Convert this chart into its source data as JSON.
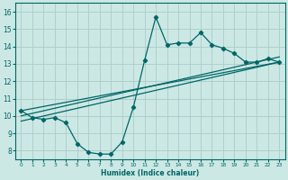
{
  "xlabel": "Humidex (Indice chaleur)",
  "bg_color": "#cce8e4",
  "grid_color": "#aacccc",
  "line_color": "#006666",
  "xlim": [
    -0.5,
    23.5
  ],
  "ylim": [
    7.5,
    16.5
  ],
  "xticks": [
    0,
    1,
    2,
    3,
    4,
    5,
    6,
    7,
    8,
    9,
    10,
    11,
    12,
    13,
    14,
    15,
    16,
    17,
    18,
    19,
    20,
    21,
    22,
    23
  ],
  "yticks": [
    8,
    9,
    10,
    11,
    12,
    13,
    14,
    15,
    16
  ],
  "line1_x": [
    0,
    1,
    2,
    3,
    4,
    5,
    6,
    7,
    8,
    9,
    10,
    11,
    12,
    13,
    14,
    15,
    16,
    17,
    18,
    19,
    20,
    21,
    22,
    23
  ],
  "line1_y": [
    10.3,
    9.9,
    9.8,
    9.9,
    9.6,
    8.4,
    7.9,
    7.8,
    7.8,
    8.5,
    10.5,
    13.2,
    15.7,
    14.1,
    14.2,
    14.2,
    14.8,
    14.1,
    13.9,
    13.6,
    13.1,
    13.1,
    13.3,
    13.1
  ],
  "line2_x": [
    0,
    23
  ],
  "line2_y": [
    10.3,
    13.1
  ],
  "line3_x": [
    0,
    23
  ],
  "line3_y": [
    10.0,
    13.4
  ],
  "line4_x": [
    0,
    23
  ],
  "line4_y": [
    9.7,
    13.1
  ],
  "marker_x": [
    0,
    1,
    2,
    3,
    4,
    5,
    6,
    7,
    8,
    9,
    10,
    11,
    12,
    13,
    14,
    15,
    16,
    17,
    18,
    19,
    20,
    21,
    22,
    23
  ],
  "marker_y": [
    10.3,
    9.9,
    9.8,
    9.9,
    9.6,
    8.4,
    7.9,
    7.8,
    7.8,
    8.5,
    10.5,
    13.2,
    15.7,
    14.1,
    14.2,
    14.2,
    14.8,
    14.1,
    13.9,
    13.6,
    13.1,
    13.1,
    13.3,
    13.1
  ]
}
